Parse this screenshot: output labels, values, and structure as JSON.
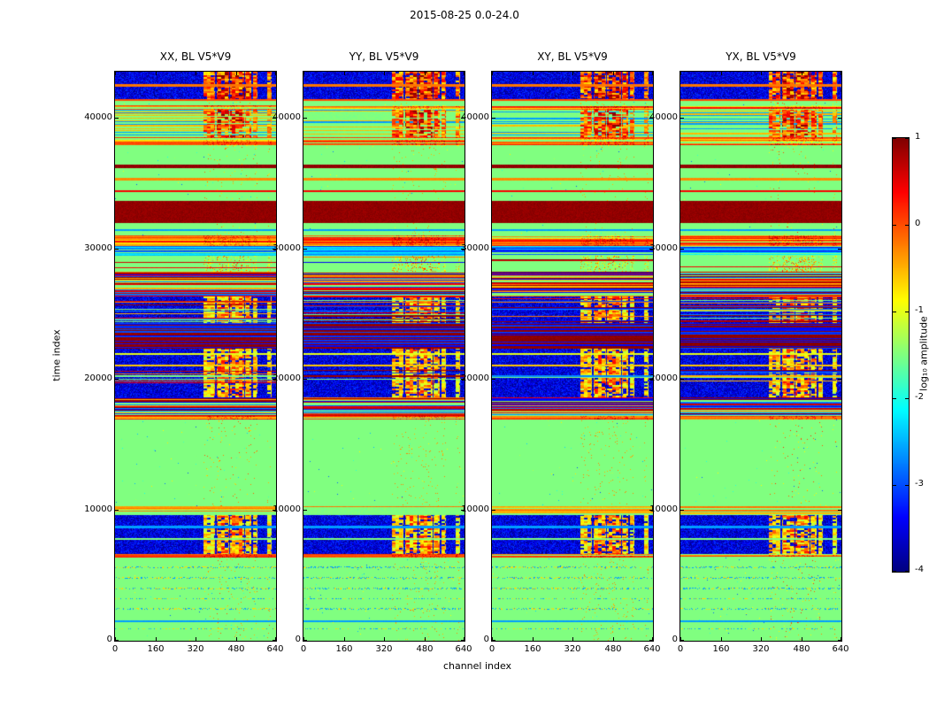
{
  "figure": {
    "title": "2015-08-25 0.0-24.0",
    "xlabel": "channel index",
    "ylabel": "time index",
    "colorbar_label": "log₁₀ amplitude"
  },
  "panels": [
    {
      "title": "XX, BL V5*V9"
    },
    {
      "title": "YY, BL V5*V9"
    },
    {
      "title": "XY, BL V5*V9"
    },
    {
      "title": "YX, BL V5*V9"
    }
  ],
  "axes": {
    "x_ticks": [
      0,
      160,
      320,
      480,
      640
    ],
    "y_ticks": [
      0,
      10000,
      20000,
      30000,
      40000
    ],
    "x_range": [
      0,
      640
    ],
    "y_range": [
      0,
      43500
    ]
  },
  "colorbar": {
    "ticks": [
      1,
      0,
      -1,
      -2,
      -3,
      -4
    ],
    "vmin": -4,
    "vmax": 1,
    "colormap": "jet"
  },
  "chart_data": {
    "type": "heatmap",
    "title": "2015-08-25 0.0-24.0",
    "xlabel": "channel index",
    "ylabel": "time index",
    "value_label": "log₁₀ amplitude",
    "colormap": "jet",
    "value_range": [
      -4,
      1
    ],
    "x_range": [
      0,
      640
    ],
    "y_range": [
      0,
      43500
    ],
    "background_value": -1.5,
    "panel_titles": [
      "XX, BL V5*V9",
      "YY, BL V5*V9",
      "XY, BL V5*V9",
      "YX, BL V5*V9"
    ],
    "rfi_columns": [
      {
        "c0": 352,
        "c1": 398,
        "w": 0.75
      },
      {
        "c0": 406,
        "c1": 452,
        "w": 1.0
      },
      {
        "c0": 458,
        "c1": 512,
        "w": 1.0
      },
      {
        "c0": 518,
        "c1": 542,
        "w": 0.85
      },
      {
        "c0": 550,
        "c1": 566,
        "w": 0.7
      },
      {
        "c0": 604,
        "c1": 624,
        "w": 0.6
      }
    ],
    "palettes": {
      "warm": [
        -0.4,
        -0.1,
        0.3,
        -0.7,
        -1.5,
        0.1,
        -0.3
      ],
      "warmgreen": [
        -0.4,
        -1.5,
        -1.5,
        -0.2,
        -1.5,
        -0.6
      ],
      "mixed": [
        0.6,
        -3.4,
        -1.5,
        -0.5,
        -2.7,
        0.9,
        -1.5,
        -0.2,
        -3.0,
        0.4
      ],
      "dark": [
        0.95,
        0.9,
        -3.3,
        0.95,
        -3.0,
        0.9,
        -3.4
      ],
      "cool": [
        -2.7,
        -3.2,
        -1.5,
        -2.4,
        -2.9,
        -2.2
      ]
    },
    "bands": [
      {
        "t0": 0,
        "t1": 850,
        "type": "quiet"
      },
      {
        "t0": 850,
        "t1": 970,
        "type": "dotline"
      },
      {
        "t0": 970,
        "t1": 1450,
        "type": "quiet"
      },
      {
        "t0": 1450,
        "t1": 1580,
        "type": "line",
        "v": -2.6
      },
      {
        "t0": 1580,
        "t1": 2350,
        "type": "quiet"
      },
      {
        "t0": 2350,
        "t1": 2470,
        "type": "dotline"
      },
      {
        "t0": 2470,
        "t1": 3150,
        "type": "quiet"
      },
      {
        "t0": 3150,
        "t1": 3270,
        "type": "dotline"
      },
      {
        "t0": 3270,
        "t1": 3950,
        "type": "quiet"
      },
      {
        "t0": 3950,
        "t1": 4070,
        "type": "dotline"
      },
      {
        "t0": 4070,
        "t1": 4750,
        "type": "quiet"
      },
      {
        "t0": 4750,
        "t1": 4870,
        "type": "dotline"
      },
      {
        "t0": 4870,
        "t1": 5550,
        "type": "quiet"
      },
      {
        "t0": 5550,
        "t1": 5670,
        "type": "dotline"
      },
      {
        "t0": 5670,
        "t1": 6350,
        "type": "quiet"
      },
      {
        "t0": 6350,
        "t1": 6600,
        "type": "stripes",
        "palette": "warm"
      },
      {
        "t0": 6600,
        "t1": 9600,
        "type": "noise",
        "rfi": true,
        "lines": [
          {
            "t": 7800,
            "v": -1.5
          },
          {
            "t": 8700,
            "v": -2.6
          }
        ]
      },
      {
        "t0": 9600,
        "t1": 10250,
        "type": "stripes",
        "palette": "warmgreen"
      },
      {
        "t0": 10250,
        "t1": 16900,
        "type": "quiet"
      },
      {
        "t0": 16900,
        "t1": 17150,
        "type": "stripes",
        "palette": "warm"
      },
      {
        "t0": 17150,
        "t1": 18600,
        "type": "stripes",
        "palette": "mixed"
      },
      {
        "t0": 18600,
        "t1": 19700,
        "type": "noise",
        "rfi": true
      },
      {
        "t0": 19700,
        "t1": 20700,
        "type": "noise_striped",
        "rfi": true
      },
      {
        "t0": 20700,
        "t1": 22300,
        "type": "noise",
        "rfi": true,
        "lines": [
          {
            "t": 21050,
            "v": -0.6
          },
          {
            "t": 21900,
            "v": -1.0
          }
        ]
      },
      {
        "t0": 22300,
        "t1": 24300,
        "type": "stripes",
        "palette": "dark"
      },
      {
        "t0": 24300,
        "t1": 26300,
        "type": "noise_striped",
        "rfi": true
      },
      {
        "t0": 26300,
        "t1": 28200,
        "type": "stripes",
        "palette": "mixed"
      },
      {
        "t0": 28200,
        "t1": 29400,
        "type": "quiet_rfi"
      },
      {
        "t0": 29400,
        "t1": 30200,
        "type": "stripes",
        "palette": "cool"
      },
      {
        "t0": 30200,
        "t1": 31000,
        "type": "stripes",
        "palette": "warm"
      },
      {
        "t0": 31000,
        "t1": 31900,
        "type": "quiet",
        "lines": [
          {
            "t": 31400,
            "v": -2.6
          }
        ]
      },
      {
        "t0": 31900,
        "t1": 33600,
        "type": "saturated"
      },
      {
        "t0": 33600,
        "t1": 34300,
        "type": "quiet"
      },
      {
        "t0": 34300,
        "t1": 34450,
        "type": "line",
        "v": 0.4
      },
      {
        "t0": 34450,
        "t1": 35200,
        "type": "quiet"
      },
      {
        "t0": 35200,
        "t1": 35350,
        "type": "line",
        "v": -0.3
      },
      {
        "t0": 35350,
        "t1": 36100,
        "type": "quiet"
      },
      {
        "t0": 36100,
        "t1": 36400,
        "type": "saturated"
      },
      {
        "t0": 36400,
        "t1": 37800,
        "type": "quiet"
      },
      {
        "t0": 37800,
        "t1": 38500,
        "type": "stripes",
        "palette": "warm"
      },
      {
        "t0": 38500,
        "t1": 40600,
        "type": "mixed_rfi"
      },
      {
        "t0": 40600,
        "t1": 40900,
        "type": "stripes",
        "palette": "warm"
      },
      {
        "t0": 40900,
        "t1": 41250,
        "type": "quiet"
      },
      {
        "t0": 41250,
        "t1": 41400,
        "type": "line",
        "v": 0.0
      },
      {
        "t0": 41400,
        "t1": 43500,
        "type": "noise",
        "rfi": true,
        "rfi_strong": true,
        "lines": [
          {
            "t": 42450,
            "v": -0.2
          }
        ]
      }
    ]
  }
}
